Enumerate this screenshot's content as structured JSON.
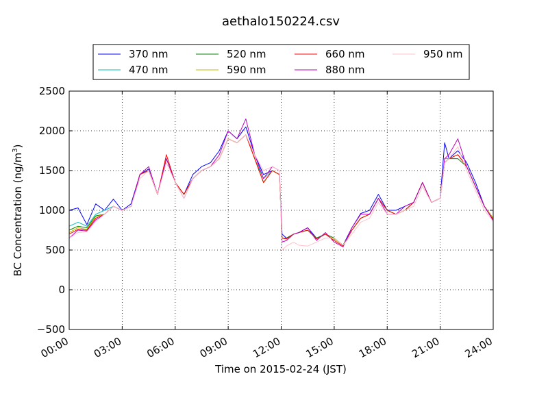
{
  "chart_data": {
    "type": "line",
    "title": "aethalo150224.csv",
    "xlabel": "Time on 2015-02-24 (JST)",
    "ylabel": "BC Concentration (ng/m",
    "ylabel_superscript": "3",
    "ylabel_close": ")",
    "xlim": [
      "00:00",
      "24:00"
    ],
    "ylim": [
      -500,
      2500
    ],
    "x_ticks": [
      "00:00",
      "03:00",
      "06:00",
      "09:00",
      "12:00",
      "15:00",
      "18:00",
      "21:00",
      "24:00"
    ],
    "y_ticks": [
      "−500",
      "0",
      "500",
      "1000",
      "1500",
      "2000",
      "2500"
    ],
    "y_tick_values": [
      -500,
      0,
      500,
      1000,
      1500,
      2000,
      2500
    ],
    "grid": true,
    "legend_position": "top",
    "x_hours": [
      0,
      0.5,
      1,
      1.5,
      2,
      2.5,
      3,
      3.5,
      4,
      4.5,
      5,
      5.5,
      6,
      6.5,
      7,
      7.5,
      8,
      8.5,
      9,
      9.5,
      10,
      10.5,
      11,
      11.5,
      11.9,
      12.05,
      12.3,
      12.7,
      13,
      13.5,
      14,
      14.5,
      15,
      15.5,
      16,
      16.5,
      17,
      17.5,
      18,
      18.5,
      19,
      19.5,
      20,
      20.5,
      21,
      21.25,
      21.5,
      22,
      22.5,
      23,
      23.5,
      24
    ],
    "series": [
      {
        "name": "370 nm",
        "color": "#0000ff",
        "values": [
          1000,
          1030,
          820,
          1080,
          1000,
          1140,
          1000,
          1080,
          1450,
          1520,
          1200,
          1650,
          1350,
          1200,
          1450,
          1550,
          1600,
          1750,
          2000,
          1900,
          2050,
          1700,
          1450,
          1500,
          1450,
          700,
          650,
          700,
          720,
          780,
          650,
          700,
          650,
          560,
          780,
          960,
          1000,
          1200,
          1000,
          1000,
          1050,
          1100,
          1350,
          1100,
          1150,
          1850,
          1650,
          1750,
          1600,
          1350,
          1050,
          900
        ]
      },
      {
        "name": "470 nm",
        "color": "#00bfbf",
        "values": [
          800,
          850,
          800,
          950,
          1000,
          1050,
          1000,
          1050,
          1450,
          1500,
          1200,
          1650,
          1350,
          1200,
          1400,
          1500,
          1550,
          1650,
          1900,
          1850,
          1950,
          1650,
          1400,
          1500,
          1450,
          650,
          650,
          700,
          720,
          750,
          650,
          700,
          650,
          560,
          750,
          900,
          950,
          1150,
          1000,
          950,
          1000,
          1100,
          1350,
          1100,
          1150,
          1650,
          1650,
          1700,
          1550,
          1300,
          1050,
          900
        ]
      },
      {
        "name": "520 nm",
        "color": "#008000",
        "values": [
          750,
          800,
          780,
          930,
          950,
          1050,
          1000,
          1050,
          1450,
          1500,
          1200,
          1650,
          1350,
          1200,
          1400,
          1500,
          1550,
          1650,
          1900,
          1850,
          1950,
          1650,
          1350,
          1500,
          1450,
          650,
          650,
          700,
          720,
          750,
          650,
          700,
          650,
          560,
          750,
          900,
          950,
          1150,
          1000,
          950,
          1000,
          1100,
          1350,
          1100,
          1150,
          1600,
          1650,
          1650,
          1550,
          1300,
          1050,
          900
        ]
      },
      {
        "name": "590 nm",
        "color": "#bfbf00",
        "values": [
          720,
          780,
          760,
          920,
          950,
          1050,
          1000,
          1050,
          1450,
          1500,
          1200,
          1650,
          1350,
          1200,
          1400,
          1500,
          1550,
          1650,
          1900,
          1850,
          1950,
          1650,
          1350,
          1500,
          1450,
          650,
          640,
          700,
          720,
          750,
          640,
          700,
          640,
          560,
          750,
          900,
          950,
          1150,
          1000,
          950,
          1000,
          1100,
          1350,
          1100,
          1150,
          1600,
          1650,
          1700,
          1550,
          1300,
          1050,
          900
        ]
      },
      {
        "name": "660 nm",
        "color": "#ff0000",
        "values": [
          700,
          760,
          750,
          900,
          950,
          1050,
          1000,
          1050,
          1450,
          1500,
          1200,
          1700,
          1350,
          1200,
          1400,
          1500,
          1550,
          1650,
          1900,
          1850,
          1950,
          1650,
          1350,
          1500,
          1450,
          650,
          640,
          700,
          720,
          750,
          640,
          700,
          620,
          550,
          750,
          900,
          950,
          1150,
          1000,
          950,
          1000,
          1100,
          1350,
          1100,
          1150,
          1600,
          1650,
          1700,
          1550,
          1300,
          1050,
          880
        ]
      },
      {
        "name": "880 nm",
        "color": "#bf00bf",
        "values": [
          650,
          750,
          740,
          880,
          950,
          1050,
          1000,
          1050,
          1450,
          1550,
          1200,
          1650,
          1350,
          1150,
          1400,
          1500,
          1550,
          1700,
          2000,
          1900,
          2150,
          1700,
          1400,
          1550,
          1500,
          600,
          620,
          700,
          720,
          780,
          620,
          720,
          600,
          540,
          780,
          950,
          950,
          1150,
          950,
          950,
          1050,
          1100,
          1350,
          1100,
          1150,
          1650,
          1700,
          1900,
          1550,
          1300,
          1050,
          870
        ]
      },
      {
        "name": "950 nm",
        "color": "#ffc0cb",
        "values": [
          650,
          720,
          730,
          860,
          950,
          1050,
          1000,
          1050,
          1400,
          1500,
          1200,
          1600,
          1350,
          1150,
          1400,
          1500,
          1550,
          1650,
          1900,
          1850,
          1950,
          1700,
          1500,
          1550,
          1500,
          500,
          550,
          600,
          560,
          550,
          600,
          650,
          650,
          560,
          700,
          850,
          900,
          1100,
          950,
          950,
          1000,
          1050,
          1300,
          1100,
          1150,
          1600,
          1650,
          1800,
          1500,
          1250,
          1000,
          860
        ]
      }
    ]
  }
}
